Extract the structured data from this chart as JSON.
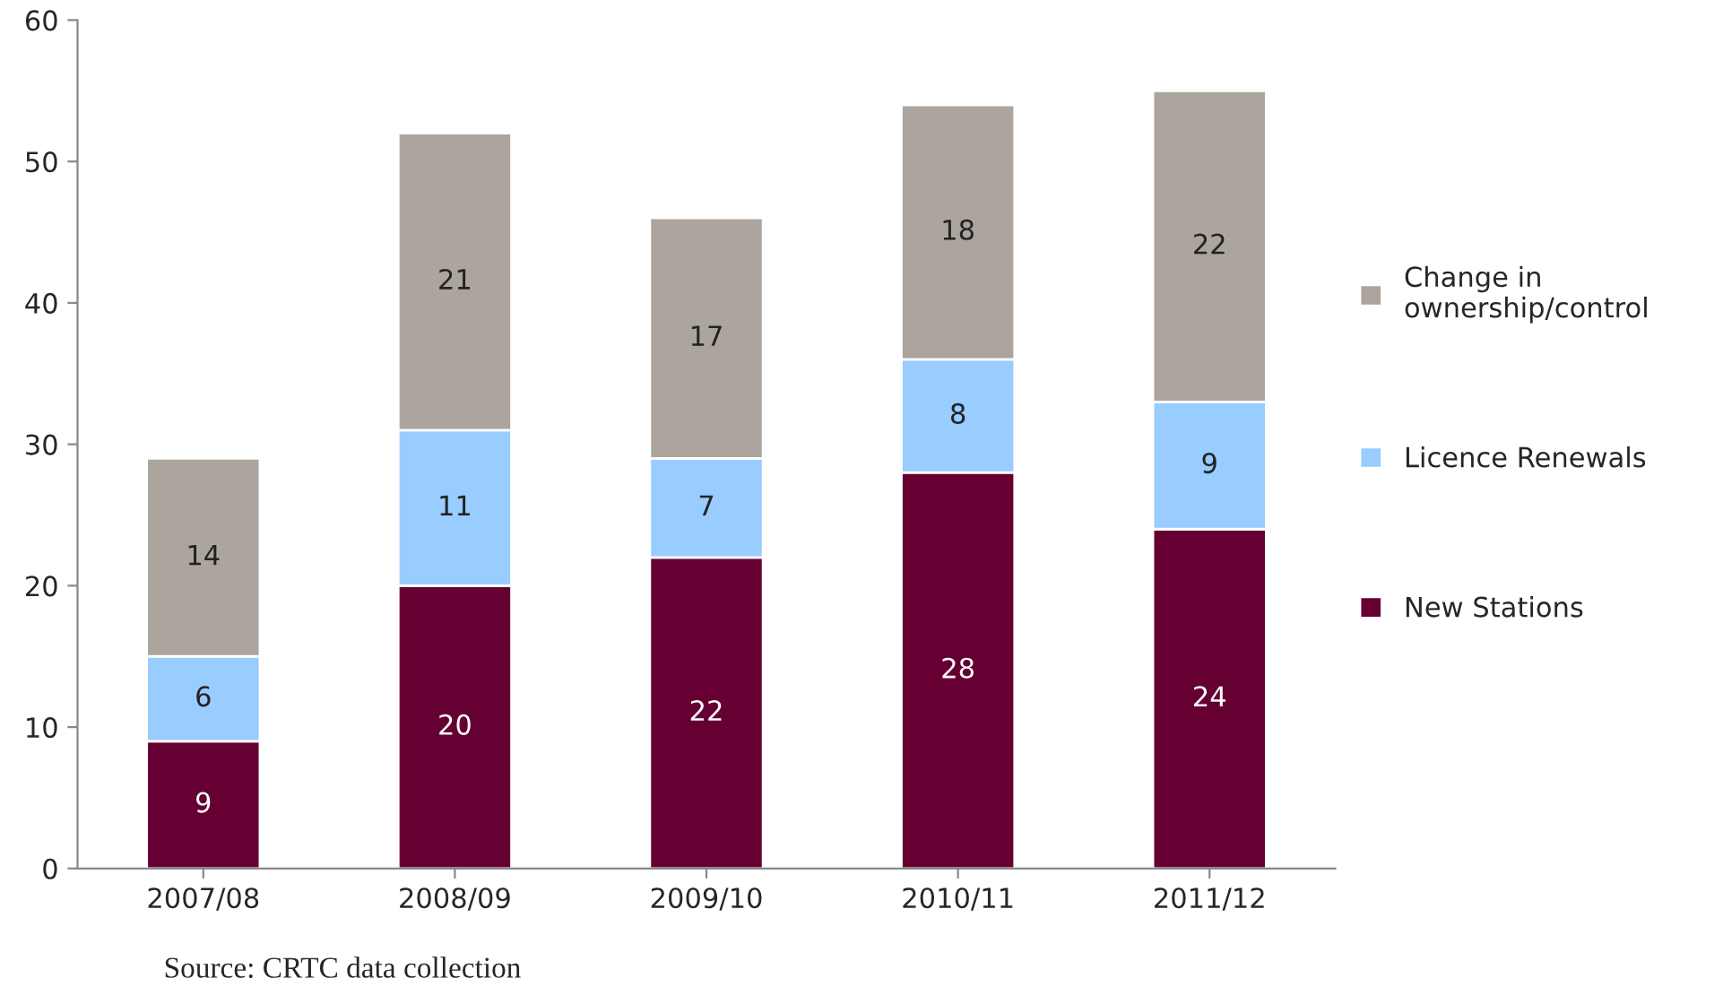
{
  "chart_data": {
    "type": "bar",
    "stacked": true,
    "data_labels": true,
    "categories": [
      "2007/08",
      "2008/09",
      "2009/10",
      "2010/11",
      "2011/12"
    ],
    "series": [
      {
        "name": "New Stations",
        "color": "#660033",
        "values": [
          9,
          20,
          22,
          28,
          24
        ]
      },
      {
        "name": "Licence Renewals",
        "color": "#99ccff",
        "values": [
          6,
          11,
          7,
          8,
          9
        ]
      },
      {
        "name": "Change in ownership/control",
        "color": "#aba59e",
        "values": [
          14,
          21,
          17,
          18,
          22
        ]
      }
    ],
    "ylim": [
      0,
      60
    ],
    "yticks": [
      0,
      10,
      20,
      30,
      40,
      50,
      60
    ],
    "grid": false,
    "legend": "right",
    "annotations": [
      "Source: CRTC data collection"
    ]
  }
}
